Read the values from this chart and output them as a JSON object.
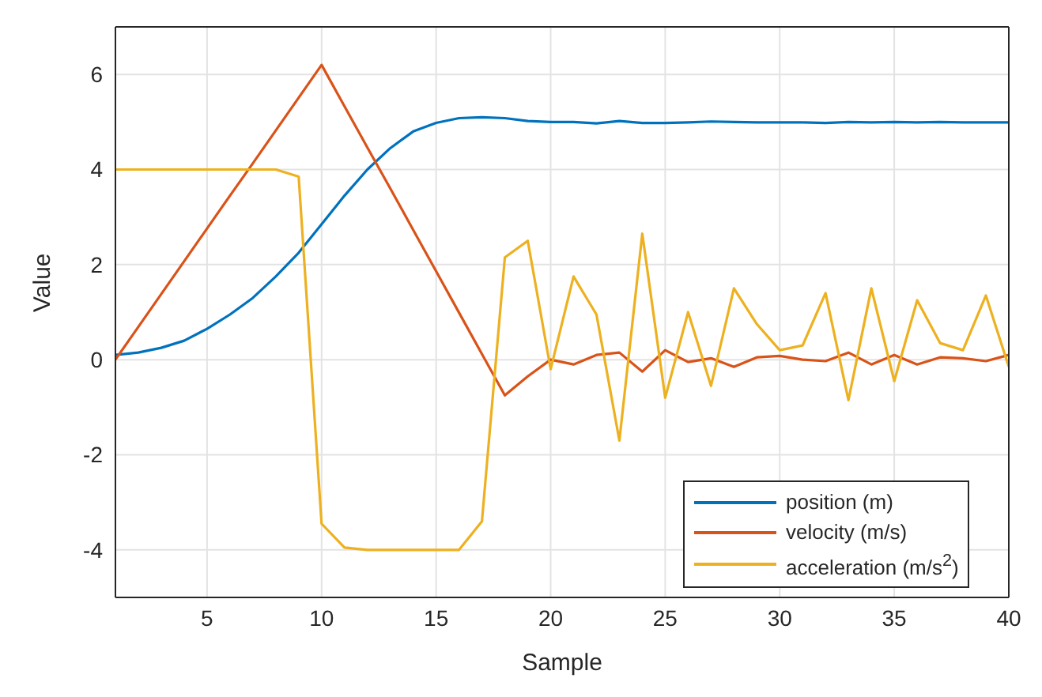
{
  "chart_data": {
    "type": "line",
    "xlabel": "Sample",
    "ylabel": "Value",
    "x": [
      1,
      2,
      3,
      4,
      5,
      6,
      7,
      8,
      9,
      10,
      11,
      12,
      13,
      14,
      15,
      16,
      17,
      18,
      19,
      20,
      21,
      22,
      23,
      24,
      25,
      26,
      27,
      28,
      29,
      30,
      31,
      32,
      33,
      34,
      35,
      36,
      37,
      38,
      39,
      40
    ],
    "series": [
      {
        "name": "position (m)",
        "color": "#0072bd",
        "values": [
          0.1,
          0.15,
          0.25,
          0.4,
          0.65,
          0.95,
          1.3,
          1.75,
          2.25,
          2.85,
          3.45,
          4.0,
          4.45,
          4.8,
          4.98,
          5.08,
          5.1,
          5.08,
          5.02,
          5.0,
          5.0,
          4.97,
          5.02,
          4.98,
          4.98,
          4.99,
          5.01,
          5.0,
          4.99,
          4.99,
          4.99,
          4.98,
          5.0,
          4.99,
          5.0,
          4.99,
          5.0,
          4.99,
          4.99,
          4.99
        ]
      },
      {
        "name": "velocity (m/s)",
        "color": "#d95319",
        "values": [
          0,
          0.69,
          1.38,
          2.07,
          2.76,
          3.45,
          4.13,
          4.82,
          5.51,
          6.2,
          5.33,
          4.46,
          3.6,
          2.73,
          1.86,
          0.99,
          0.12,
          -0.75,
          -0.35,
          0.0,
          -0.1,
          0.1,
          0.15,
          -0.25,
          0.2,
          -0.05,
          0.03,
          -0.15,
          0.05,
          0.08,
          0.0,
          -0.03,
          0.15,
          -0.1,
          0.1,
          -0.1,
          0.05,
          0.03,
          -0.03,
          0.1
        ]
      },
      {
        "name": "acceleration (m/s$^{2}$)",
        "color": "#edb120",
        "values": [
          4,
          4,
          4,
          4,
          4,
          4,
          4,
          4,
          3.85,
          -3.45,
          -3.95,
          -4,
          -4,
          -4,
          -4,
          -4,
          -3.4,
          2.15,
          2.5,
          -0.2,
          1.75,
          0.95,
          -1.7,
          2.65,
          -0.8,
          1.0,
          -0.55,
          1.5,
          0.75,
          0.2,
          0.3,
          1.4,
          -0.85,
          1.5,
          -0.45,
          1.25,
          0.35,
          0.2,
          1.35,
          -0.15
        ]
      }
    ],
    "xlim": [
      1,
      40
    ],
    "xticks": [
      5,
      10,
      15,
      20,
      25,
      30,
      35,
      40
    ],
    "ylim": [
      -5,
      7
    ],
    "yticks": [
      -4,
      -2,
      0,
      2,
      4,
      6
    ],
    "grid": true,
    "legend": "bottom right",
    "marker": "none",
    "line_style": "solid"
  }
}
